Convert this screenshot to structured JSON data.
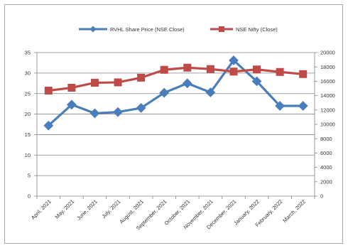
{
  "chart_data": {
    "type": "line",
    "title": "",
    "categories": [
      "April, 2021",
      "May, 2021",
      "June, 2021",
      "July, 2021",
      "August, 2021",
      "September, 2021",
      "October, 2021",
      "November, 2021",
      "December, 2021",
      "January, 2022",
      "February, 2022",
      "March, 2022"
    ],
    "series": [
      {
        "name": "RVHL Share Price (NSE Close)",
        "axis": "left",
        "color": "#4a7ebb",
        "marker": "diamond",
        "values": [
          17.2,
          22.3,
          20.2,
          20.5,
          21.5,
          25.2,
          27.5,
          25.3,
          33.1,
          28.0,
          22.0,
          22.0
        ]
      },
      {
        "name": "NSE Nifty (Close)",
        "axis": "right",
        "color": "#be4b48",
        "marker": "square",
        "values": [
          14700,
          15100,
          15800,
          15850,
          16500,
          17600,
          17900,
          17700,
          17350,
          17650,
          17300,
          17000
        ]
      }
    ],
    "y_left": {
      "min": 0,
      "max": 35,
      "ticks": [
        "0",
        "5",
        "10",
        "15",
        "20",
        "25",
        "30",
        "35"
      ]
    },
    "y_right": {
      "min": 0,
      "max": 20000,
      "ticks": [
        "0",
        "2000",
        "4000",
        "6000",
        "8000",
        "10000",
        "12000",
        "14000",
        "16000",
        "18000",
        "20000"
      ]
    },
    "grid": true,
    "legend_position": "top"
  }
}
